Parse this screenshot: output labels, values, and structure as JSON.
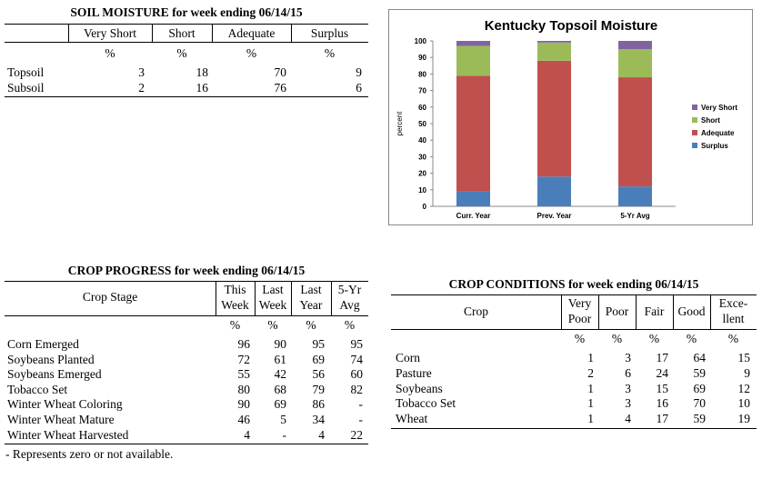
{
  "soil": {
    "title": "SOIL MOISTURE for week ending 06/14/15",
    "headers": [
      "Very Short",
      "Short",
      "Adequate",
      "Surplus"
    ],
    "units": [
      "%",
      "%",
      "%",
      "%"
    ],
    "rows": [
      {
        "label": "Topsoil",
        "values": [
          "3",
          "18",
          "70",
          "9"
        ]
      },
      {
        "label": "Subsoil",
        "values": [
          "2",
          "16",
          "76",
          "6"
        ]
      }
    ]
  },
  "chart_data": {
    "type": "bar",
    "stacked": true,
    "title": "Kentucky Topsoil Moisture",
    "ylabel": "percent",
    "xlabel": "",
    "categories": [
      "Curr. Year",
      "Prev. Year",
      "5-Yr Avg"
    ],
    "ylim": [
      0,
      100
    ],
    "yticks": [
      0,
      10,
      20,
      30,
      40,
      50,
      60,
      70,
      80,
      90,
      100
    ],
    "series": [
      {
        "name": "Surplus",
        "color": "#4a7ebb",
        "values": [
          9,
          18,
          12
        ]
      },
      {
        "name": "Adequate",
        "color": "#c0504d",
        "values": [
          70,
          70,
          66
        ]
      },
      {
        "name": "Short",
        "color": "#9bbb59",
        "values": [
          18,
          11,
          17
        ]
      },
      {
        "name": "Very Short",
        "color": "#8064a2",
        "values": [
          3,
          1,
          5
        ]
      }
    ],
    "legend_order": [
      "Very Short",
      "Short",
      "Adequate",
      "Surplus"
    ],
    "legend_position": "right",
    "grid": false
  },
  "progress": {
    "title": "CROP PROGRESS for week ending 06/14/15",
    "stage_header": "Crop Stage",
    "headers": [
      {
        "line1": "This",
        "line2": "Week"
      },
      {
        "line1": "Last",
        "line2": "Week"
      },
      {
        "line1": "Last",
        "line2": "Year"
      },
      {
        "line1": "5-Yr",
        "line2": "Avg"
      }
    ],
    "units": [
      "%",
      "%",
      "%",
      "%"
    ],
    "rows": [
      {
        "label": "Corn Emerged",
        "values": [
          "96",
          "90",
          "95",
          "95"
        ]
      },
      {
        "label": "Soybeans Planted",
        "values": [
          "72",
          "61",
          "69",
          "74"
        ]
      },
      {
        "label": "Soybeans Emerged",
        "values": [
          "55",
          "42",
          "56",
          "60"
        ]
      },
      {
        "label": "Tobacco Set",
        "values": [
          "80",
          "68",
          "79",
          "82"
        ]
      },
      {
        "label": "Winter Wheat Coloring",
        "values": [
          "90",
          "69",
          "86",
          "-"
        ]
      },
      {
        "label": "Winter Wheat Mature",
        "values": [
          "46",
          "5",
          "34",
          "-"
        ]
      },
      {
        "label": "Winter Wheat Harvested",
        "values": [
          "4",
          "-",
          "4",
          "22"
        ]
      }
    ],
    "footnote": "- Represents zero or not available."
  },
  "conditions": {
    "title": "CROP CONDITIONS for week ending 06/14/15",
    "crop_header": "Crop",
    "headers": [
      {
        "line1": "Very",
        "line2": "Poor"
      },
      {
        "line1": "Poor",
        "line2": ""
      },
      {
        "line1": "Fair",
        "line2": ""
      },
      {
        "line1": "Good",
        "line2": ""
      },
      {
        "line1": "Exce-",
        "line2": "llent"
      }
    ],
    "units": [
      "%",
      "%",
      "%",
      "%",
      "%"
    ],
    "rows": [
      {
        "label": "Corn",
        "values": [
          "1",
          "3",
          "17",
          "64",
          "15"
        ]
      },
      {
        "label": "Pasture",
        "values": [
          "2",
          "6",
          "24",
          "59",
          "9"
        ]
      },
      {
        "label": "Soybeans",
        "values": [
          "1",
          "3",
          "15",
          "69",
          "12"
        ]
      },
      {
        "label": "Tobacco Set",
        "values": [
          "1",
          "3",
          "16",
          "70",
          "10"
        ]
      },
      {
        "label": "Wheat",
        "values": [
          "1",
          "4",
          "17",
          "59",
          "19"
        ]
      }
    ]
  }
}
